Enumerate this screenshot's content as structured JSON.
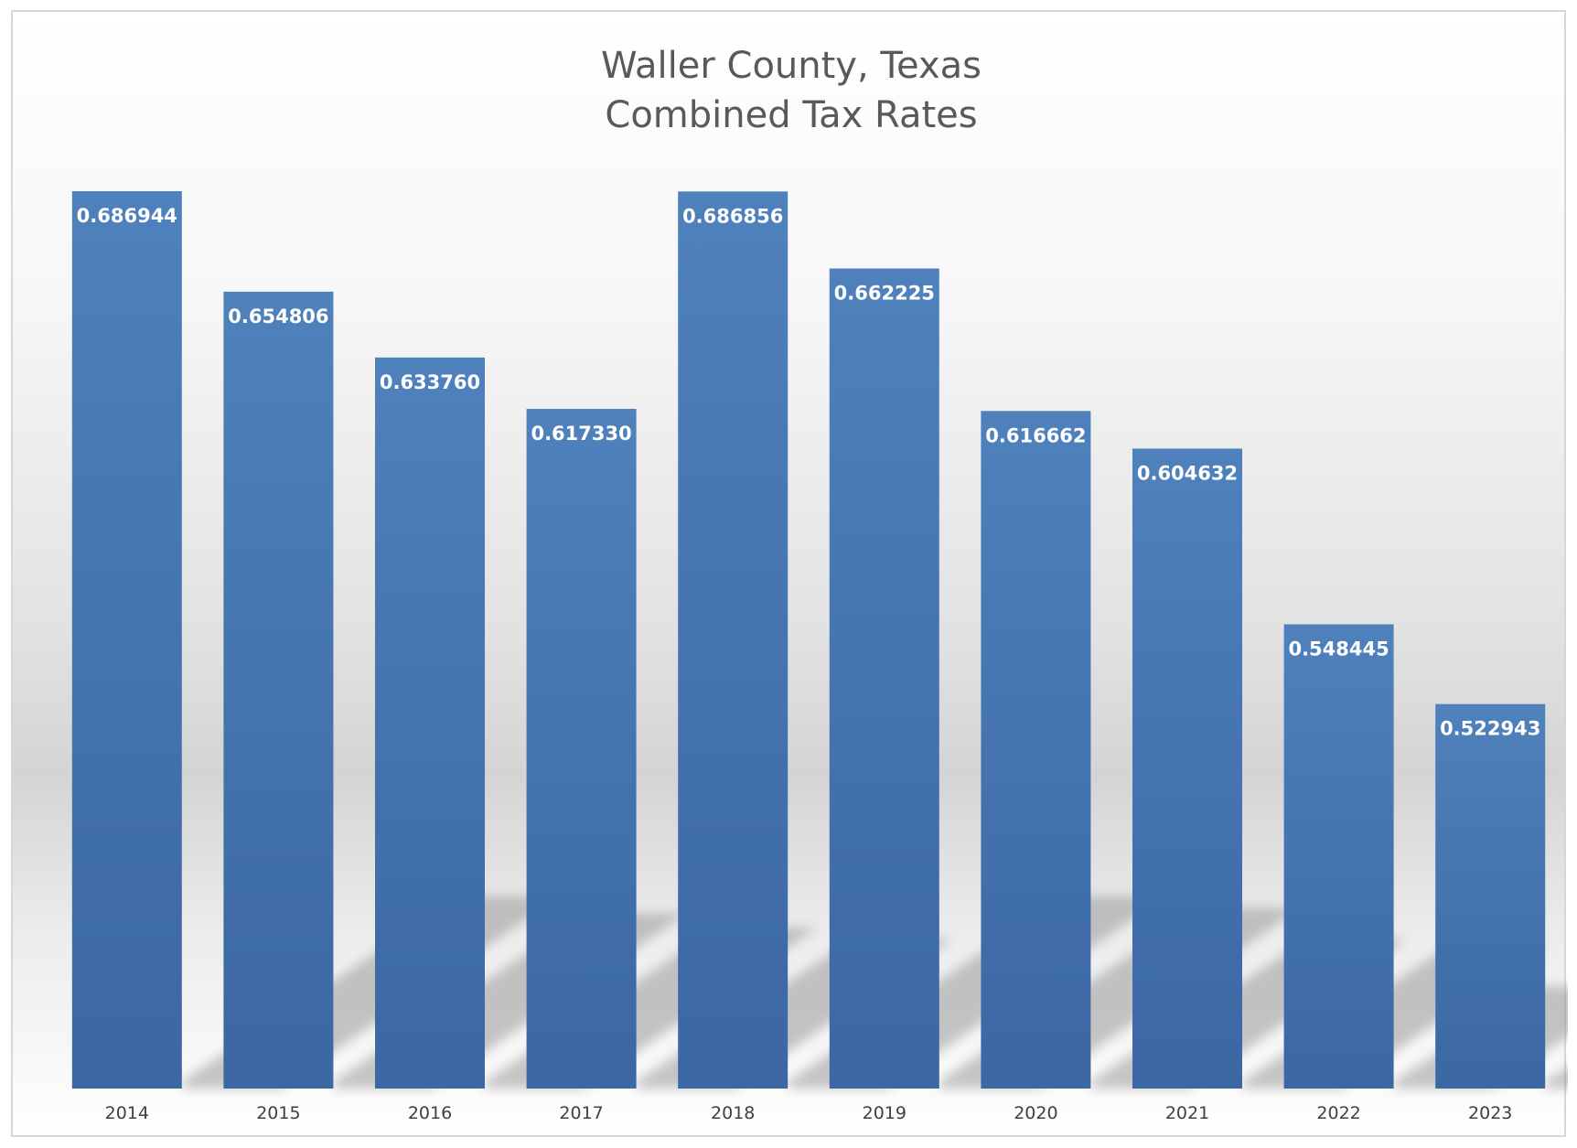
{
  "chart_data": {
    "type": "bar",
    "title": [
      "Waller County, Texas",
      "Combined Tax Rates"
    ],
    "categories": [
      "2014",
      "2015",
      "2016",
      "2017",
      "2018",
      "2019",
      "2020",
      "2021",
      "2022",
      "2023"
    ],
    "values": [
      0.686944,
      0.654806,
      0.63376,
      0.61733,
      0.686856,
      0.662225,
      0.616662,
      0.604632,
      0.548445,
      0.522943
    ],
    "value_labels": [
      "0.686944",
      "0.654806",
      "0.633760",
      "0.617330",
      "0.686856",
      "0.662225",
      "0.616662",
      "0.604632",
      "0.548445",
      "0.522943"
    ],
    "bar_color": "#4a7ab5",
    "grid": false,
    "legend": "none",
    "xlabel": "",
    "ylabel": ""
  }
}
